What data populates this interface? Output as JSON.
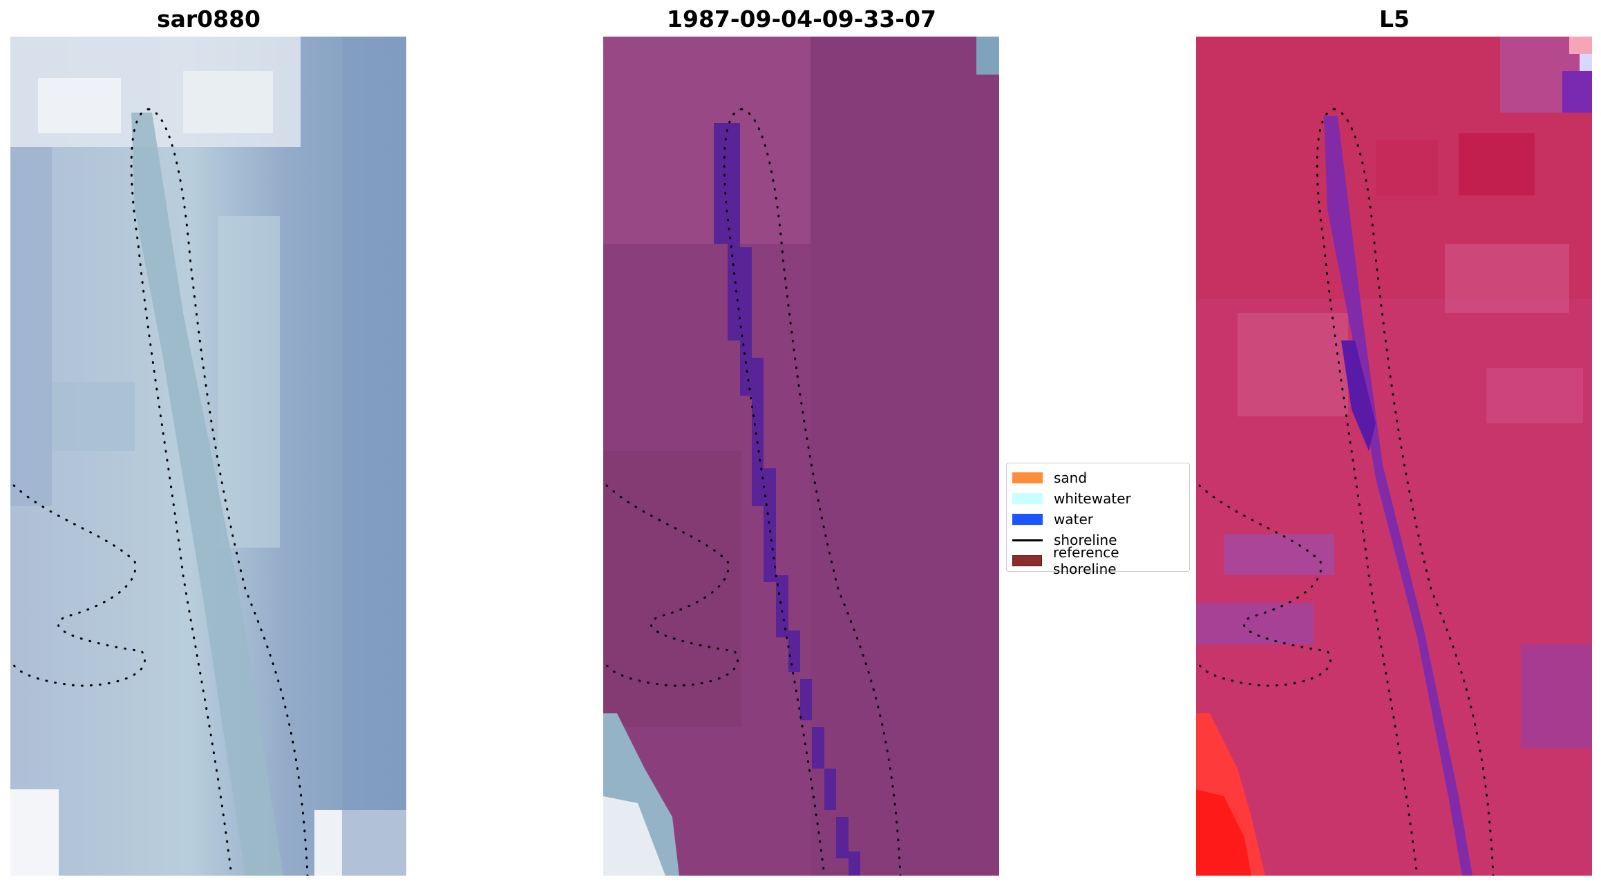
{
  "titles": [
    "sar0880",
    "1987-09-04-09-33-07",
    "L5"
  ],
  "legend": {
    "items": [
      {
        "label": "sand",
        "kind": "patch",
        "color": "#ff8c3a"
      },
      {
        "label": "whitewater",
        "kind": "patch",
        "color": "#c8ffff"
      },
      {
        "label": "water",
        "kind": "patch",
        "color": "#1a55ff"
      },
      {
        "label": "shoreline",
        "kind": "line",
        "color": "#000000"
      },
      {
        "label": "reference shoreline",
        "kind": "patch",
        "color": "#8b2d2d"
      }
    ]
  },
  "colors": {
    "rgb_base": "#8ea8c6",
    "classified_base": "#8a3f7c",
    "classified_water": "#5a2499",
    "ndwi_base": "#c7356a",
    "ndwi_channel": "#7a2ab0",
    "ndwi_hot": "#ff2020"
  }
}
